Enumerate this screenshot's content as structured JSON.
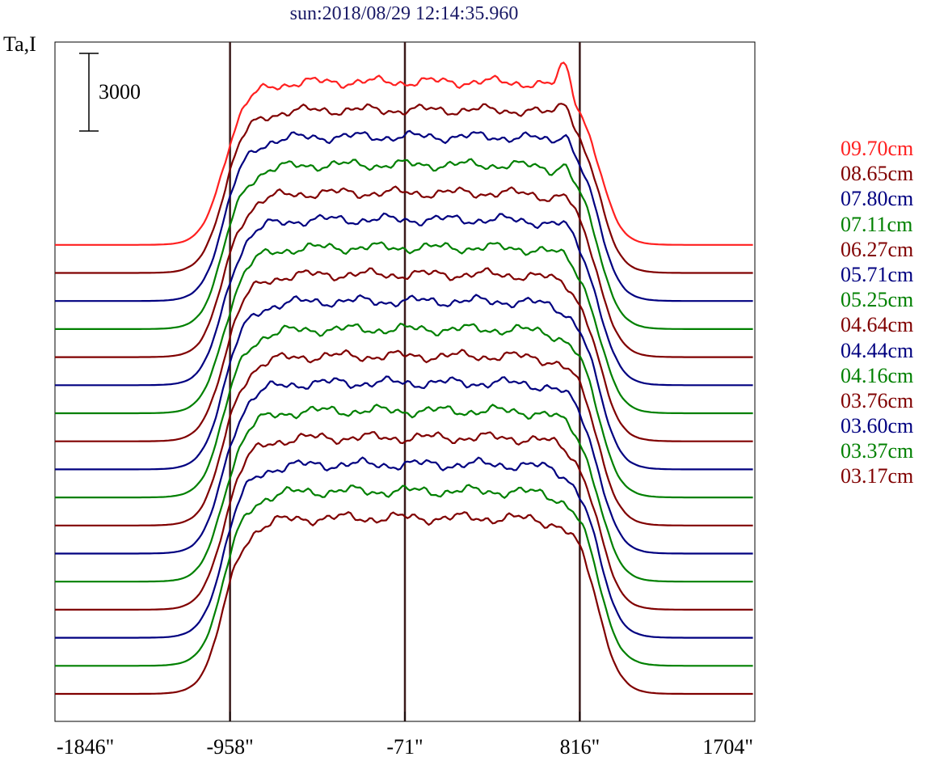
{
  "chart_data": {
    "type": "line",
    "title": "sun:2018/08/29 12:14:35.960",
    "ylabel": "Ta,I",
    "xlim": [
      -1846,
      1704
    ],
    "x_ticks": [
      "-1846\"",
      "-958\"",
      "-71\"",
      "816\"",
      "1704\""
    ],
    "x_tick_values": [
      -1846,
      -958,
      -71,
      816,
      1704
    ],
    "vertical_lines": [
      -958,
      -71,
      816
    ],
    "scale_bar": {
      "label": "3000",
      "value": 3000
    },
    "grid": false,
    "legend_position": "right",
    "offset_per_series": 3000,
    "series": [
      {
        "name": "09.70cm",
        "color": "#ff2020",
        "peak": 6300,
        "limb_bump": 1100
      },
      {
        "name": "08.65cm",
        "color": "#800000",
        "peak": 6300,
        "limb_bump": 800
      },
      {
        "name": "07.80cm",
        "color": "#000080",
        "peak": 6350,
        "limb_bump": 600
      },
      {
        "name": "07.11cm",
        "color": "#008000",
        "peak": 6350,
        "limb_bump": 400
      },
      {
        "name": "06.27cm",
        "color": "#800000",
        "peak": 6350,
        "limb_bump": 300
      },
      {
        "name": "05.71cm",
        "color": "#000080",
        "peak": 6400,
        "limb_bump": 200
      },
      {
        "name": "05.25cm",
        "color": "#008000",
        "peak": 6400,
        "limb_bump": 100
      },
      {
        "name": "04.64cm",
        "color": "#800000",
        "peak": 6450,
        "limb_bump": 100
      },
      {
        "name": "04.44cm",
        "color": "#000080",
        "peak": 6500,
        "limb_bump": 0
      },
      {
        "name": "04.16cm",
        "color": "#008000",
        "peak": 6500,
        "limb_bump": 0
      },
      {
        "name": "03.76cm",
        "color": "#800000",
        "peak": 6550,
        "limb_bump": 0
      },
      {
        "name": "03.60cm",
        "color": "#000080",
        "peak": 6600,
        "limb_bump": 0
      },
      {
        "name": "03.37cm",
        "color": "#008000",
        "peak": 6600,
        "limb_bump": 0
      },
      {
        "name": "03.17cm",
        "color": "#800000",
        "peak": 6650,
        "limb_bump": 0
      },
      {
        "name": "",
        "color": "#000080",
        "peak": 6700,
        "limb_bump": 0
      },
      {
        "name": "",
        "color": "#008000",
        "peak": 6750,
        "limb_bump": 0
      },
      {
        "name": "",
        "color": "#800000",
        "peak": 6800,
        "limb_bump": 0
      }
    ]
  }
}
